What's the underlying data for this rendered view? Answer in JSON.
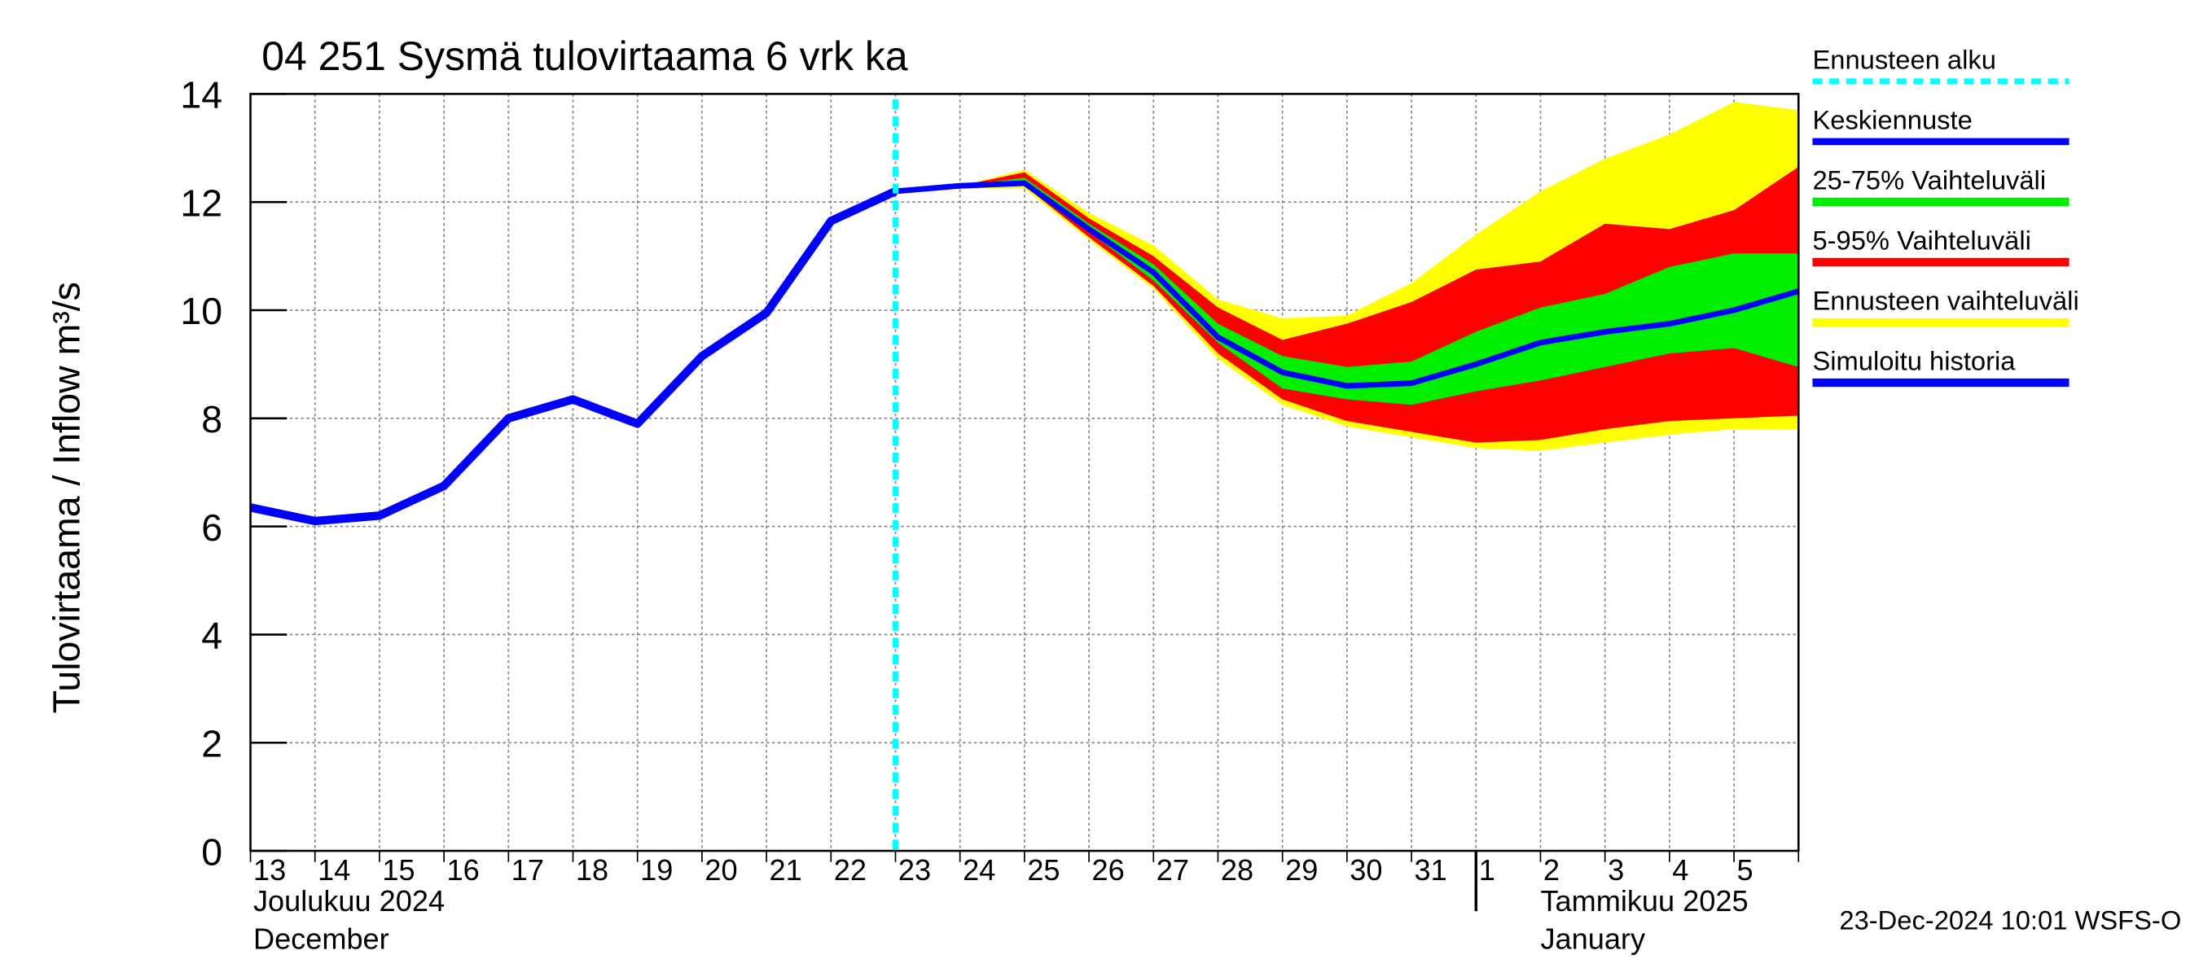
{
  "chart_data": {
    "type": "line",
    "title": "04 251 Sysmä tulovirtaama 6 vrk ka",
    "y_label": "Tulovirtaama / Inflow    m³/s",
    "categories": [
      "13",
      "14",
      "15",
      "16",
      "17",
      "18",
      "19",
      "20",
      "21",
      "22",
      "23",
      "24",
      "25",
      "26",
      "27",
      "28",
      "29",
      "30",
      "31",
      "1",
      "2",
      "3",
      "4",
      "5",
      null
    ],
    "month_labels": [
      [
        "Joulukuu  2024",
        "December"
      ],
      [
        "Tammikuu  2025",
        "January"
      ]
    ],
    "timestamp": "23-Dec-2024 10:01 WSFS-O",
    "ylim": [
      0,
      14
    ],
    "yticks": [
      0,
      2,
      4,
      6,
      8,
      10,
      12,
      14
    ],
    "grid": true,
    "forecast_start": {
      "name": "Ennusteen alku",
      "color": "#00ffff",
      "index": 10
    },
    "bands": [
      {
        "name": "Ennusteen vaihteluväli",
        "color": "#ffff00",
        "upper": [
          null,
          null,
          null,
          null,
          null,
          null,
          null,
          null,
          null,
          null,
          12.2,
          12.3,
          12.6,
          11.8,
          11.2,
          10.2,
          9.85,
          9.9,
          10.5,
          11.4,
          12.2,
          12.8,
          13.25,
          13.85,
          13.7
        ],
        "lower": [
          null,
          null,
          null,
          null,
          null,
          null,
          null,
          null,
          null,
          null,
          12.2,
          12.25,
          12.25,
          11.3,
          10.4,
          9.1,
          8.25,
          7.85,
          7.65,
          7.45,
          7.4,
          7.55,
          7.7,
          7.8,
          7.8
        ]
      },
      {
        "name": "5-95% Vaihteluväli",
        "color": "#ff0000",
        "upper": [
          null,
          null,
          null,
          null,
          null,
          null,
          null,
          null,
          null,
          null,
          12.2,
          12.3,
          12.55,
          11.7,
          11.0,
          10.05,
          9.45,
          9.75,
          10.15,
          10.75,
          10.9,
          11.6,
          11.5,
          11.85,
          12.65
        ],
        "lower": [
          null,
          null,
          null,
          null,
          null,
          null,
          null,
          null,
          null,
          null,
          12.2,
          12.25,
          12.3,
          11.35,
          10.45,
          9.2,
          8.35,
          7.95,
          7.75,
          7.55,
          7.6,
          7.8,
          7.95,
          8.0,
          8.05
        ]
      },
      {
        "name": "25-75% Vaihteluväli",
        "color": "#00ee00",
        "upper": [
          null,
          null,
          null,
          null,
          null,
          null,
          null,
          null,
          null,
          null,
          12.2,
          12.3,
          12.45,
          11.6,
          10.85,
          9.75,
          9.15,
          8.95,
          9.05,
          9.6,
          10.05,
          10.3,
          10.8,
          11.05,
          11.05
        ],
        "lower": [
          null,
          null,
          null,
          null,
          null,
          null,
          null,
          null,
          null,
          null,
          12.2,
          12.25,
          12.35,
          11.45,
          10.55,
          9.4,
          8.55,
          8.35,
          8.25,
          8.5,
          8.7,
          8.95,
          9.2,
          9.3,
          8.95
        ]
      }
    ],
    "series": [
      {
        "name": "Keskiennuste",
        "color": "#0000ff",
        "values": [
          null,
          null,
          null,
          null,
          null,
          null,
          null,
          null,
          null,
          null,
          12.2,
          12.3,
          12.35,
          11.5,
          10.7,
          9.5,
          8.85,
          8.6,
          8.65,
          9.0,
          9.4,
          9.6,
          9.75,
          10.0,
          10.35
        ]
      },
      {
        "name": "Simuloitu historia",
        "color": "#0000ff",
        "values": [
          6.35,
          6.1,
          6.2,
          6.75,
          8.0,
          8.35,
          7.9,
          9.15,
          9.95,
          11.65,
          12.2,
          null,
          null,
          null,
          null,
          null,
          null,
          null,
          null,
          null,
          null,
          null,
          null,
          null,
          null
        ]
      }
    ]
  }
}
